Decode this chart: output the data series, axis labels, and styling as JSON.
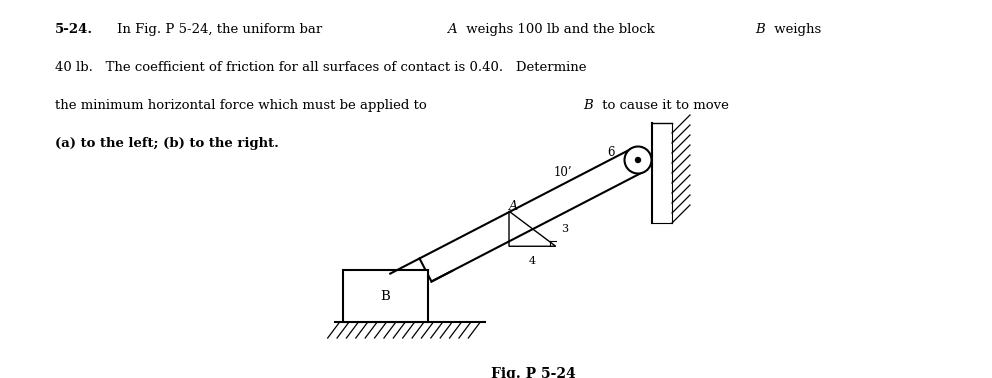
{
  "bg_color": "#ffffff",
  "line_color": "#000000",
  "bar_label": "B",
  "bar_A_label": "A",
  "dim_label_10": "10’",
  "dim_label_4": "4",
  "dim_label_3": "3",
  "dim_label_6": "6",
  "fig_caption": "Fig. P 5-24",
  "text_line1": "5-24.",
  "text_line2": "In Fig. P 5-24, the uniform bar ",
  "text_line3": " weighs 100 lb and the block ",
  "text_line4": " weighs",
  "text_line5": "40 lb.   The coefficient of friction for all surfaces of contact is 0.40.   Determine",
  "text_line6": "the minimum horizontal force which must be applied to ",
  "text_line7": " to cause it to move",
  "text_line8": "(a) to the left; (b) to the right.",
  "figw": 9.92,
  "figh": 3.78,
  "dpi": 100
}
